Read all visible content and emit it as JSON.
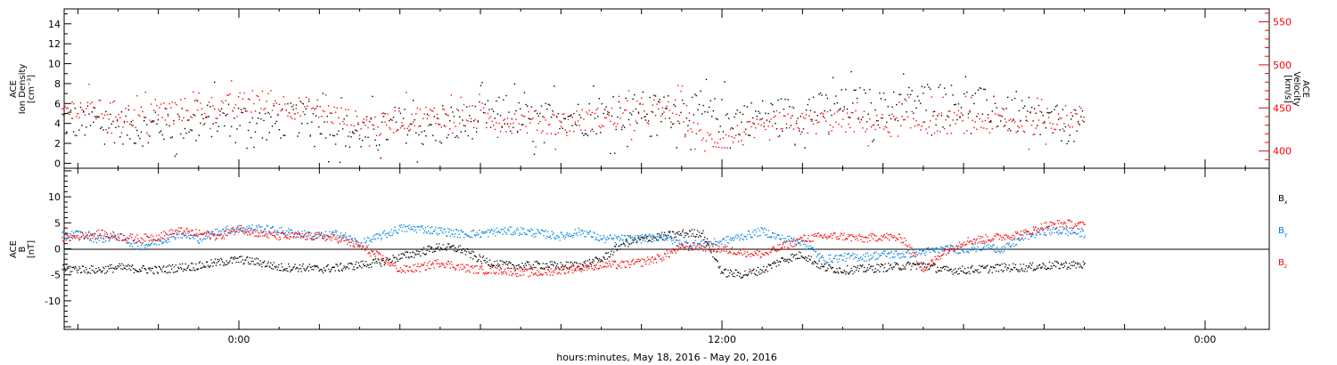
{
  "chart_data": [
    {
      "type": "scatter",
      "panel": "top",
      "xlabel": "hours:minutes, May 18, 2016 - May 20, 2016",
      "x_tick_labels": [
        "0:00",
        "12:00",
        "0:00"
      ],
      "ylabel_left": [
        "ACE",
        "Ion Density",
        "[cm⁻³]"
      ],
      "ylabel_right": [
        "ACE",
        "Velocity",
        "[km/s]"
      ],
      "y_left_lim": [
        -0.5,
        15.5
      ],
      "y_left_ticks": [
        0,
        2,
        4,
        6,
        8,
        10,
        12,
        14
      ],
      "y_right_lim": [
        380,
        565
      ],
      "y_right_ticks": [
        400,
        450,
        500,
        550
      ],
      "series": [
        {
          "color": "#000000",
          "axis": "left",
          "x_hours": [
            -4.5,
            -4,
            -3.5,
            -3,
            -2.5,
            -2,
            -1.5,
            -1,
            -0.5,
            0,
            0.5,
            1,
            1.5,
            2,
            2.5,
            3,
            3.5,
            4,
            4.5,
            5,
            5.5,
            6,
            6.5,
            7,
            7.5,
            8,
            8.5,
            9,
            9.5,
            10,
            10.5,
            11,
            11.5,
            12,
            12.5,
            13,
            13.5,
            14,
            14.5,
            15,
            15.5,
            16,
            16.5,
            17,
            17.5,
            18,
            18.5,
            19,
            19.5,
            20,
            20.5,
            21
          ],
          "y": [
            4.5,
            4.2,
            4.0,
            3.8,
            3.5,
            3.8,
            4.0,
            4.2,
            4.5,
            4.5,
            4.0,
            4.2,
            4.5,
            4.5,
            3.5,
            3.0,
            3.2,
            4.0,
            3.5,
            3.5,
            4.0,
            4.5,
            5.0,
            4.5,
            4.2,
            5.0,
            4.5,
            4.8,
            5.0,
            5.5,
            5.2,
            5.5,
            5.0,
            4.8,
            4.5,
            4.8,
            5.0,
            5.0,
            5.5,
            5.8,
            6.0,
            5.5,
            6.0,
            6.5,
            6.5,
            6.0,
            5.8,
            5.0,
            4.5,
            4.2,
            3.8,
            3.5
          ],
          "spread": 1.8
        },
        {
          "color": "#ff0000",
          "axis": "right",
          "x_hours": [
            -4.5,
            -4,
            -3.5,
            -3,
            -2.5,
            -2,
            -1.5,
            -1,
            -0.5,
            0,
            0.5,
            1,
            1.5,
            2,
            2.5,
            3,
            3.5,
            4,
            4.5,
            5,
            5.5,
            6,
            6.5,
            7,
            7.5,
            8,
            8.5,
            9,
            9.5,
            10,
            10.5,
            11,
            11.5,
            12,
            12.5,
            13,
            13.5,
            14,
            14.5,
            15,
            15.5,
            16,
            16.5,
            17,
            17.5,
            18,
            18.5,
            19,
            19.5,
            20,
            20.5,
            21
          ],
          "y": [
            448,
            450,
            447,
            445,
            440,
            445,
            448,
            450,
            452,
            455,
            458,
            455,
            450,
            448,
            440,
            432,
            430,
            438,
            440,
            442,
            440,
            438,
            436,
            435,
            432,
            434,
            436,
            438,
            440,
            442,
            445,
            448,
            412,
            415,
            420,
            425,
            430,
            432,
            435,
            436,
            434,
            430,
            432,
            435,
            434,
            435,
            434,
            433,
            432,
            435,
            440,
            440
          ],
          "spread": 14
        }
      ]
    },
    {
      "type": "scatter",
      "panel": "bottom",
      "ylabel_left": [
        "ACE",
        "B",
        "[nT]"
      ],
      "y_left_lim": [
        -15.5,
        15.5
      ],
      "y_left_ticks": [
        -10,
        -5,
        0,
        5,
        10
      ],
      "x_hours": [
        -4.5,
        -4,
        -3.5,
        -3,
        -2.5,
        -2,
        -1.5,
        -1,
        -0.5,
        0,
        0.5,
        1,
        1.5,
        2,
        2.5,
        3,
        3.5,
        4,
        4.5,
        5,
        5.5,
        6,
        6.5,
        7,
        7.5,
        8,
        8.5,
        9,
        9.5,
        10,
        10.5,
        11,
        11.5,
        12,
        12.5,
        13,
        13.5,
        14,
        14.5,
        15,
        15.5,
        16,
        16.5,
        17,
        17.5,
        18,
        18.5,
        19,
        19.5,
        20,
        20.5,
        21
      ],
      "series": [
        {
          "name": "B",
          "subscript": "x",
          "color": "#000000",
          "y": [
            -3.5,
            -3.8,
            -4.0,
            -3.5,
            -3.8,
            -4.0,
            -3.5,
            -3.2,
            -2.5,
            -2.0,
            -2.5,
            -3.5,
            -3.5,
            -3.8,
            -3.5,
            -3.0,
            -2.5,
            -1.5,
            -0.5,
            0.5,
            0.0,
            -2.0,
            -3.0,
            -3.2,
            -3.0,
            -3.2,
            -3.0,
            -2.0,
            1.0,
            2.0,
            2.5,
            3.0,
            3.2,
            -4.5,
            -4.8,
            -4.0,
            -2.0,
            -1.0,
            -3.5,
            -4.0,
            -3.8,
            -3.5,
            -3.2,
            -3.0,
            -4.0,
            -4.0,
            -3.8,
            -3.5,
            -3.5,
            -3.2,
            -3.0,
            -3.0
          ]
        },
        {
          "name": "B",
          "subscript": "y",
          "color": "#0080e0",
          "y": [
            2.5,
            3.0,
            2.0,
            2.5,
            0.5,
            1.5,
            3.0,
            2.0,
            3.5,
            4.0,
            4.0,
            3.5,
            3.0,
            2.5,
            3.0,
            1.0,
            2.5,
            4.0,
            4.0,
            3.5,
            3.0,
            3.0,
            3.5,
            3.5,
            3.0,
            2.5,
            3.5,
            2.0,
            2.0,
            2.0,
            2.5,
            1.0,
            1.0,
            1.5,
            2.5,
            3.5,
            2.0,
            1.5,
            -2.0,
            -1.5,
            -1.5,
            -1.0,
            -1.0,
            -0.5,
            0.0,
            0.0,
            0.5,
            0.0,
            2.5,
            3.5,
            3.5,
            3.0
          ]
        },
        {
          "name": "B",
          "subscript": "z",
          "color": "#ff0000",
          "y": [
            2.0,
            2.5,
            3.0,
            2.5,
            2.0,
            2.5,
            3.5,
            3.0,
            2.5,
            4.0,
            3.0,
            2.5,
            2.5,
            2.5,
            2.0,
            0.5,
            -1.5,
            -4.0,
            -3.5,
            -2.5,
            -3.5,
            -4.0,
            -4.0,
            -4.5,
            -4.5,
            -4.0,
            -3.5,
            -3.0,
            -3.0,
            -2.5,
            -1.5,
            0.5,
            0.5,
            0.0,
            -0.5,
            -1.0,
            0.5,
            2.0,
            2.5,
            2.5,
            2.0,
            2.5,
            2.0,
            -4.0,
            -0.5,
            1.5,
            2.0,
            2.5,
            3.0,
            4.5,
            5.0,
            4.5
          ]
        }
      ]
    }
  ]
}
